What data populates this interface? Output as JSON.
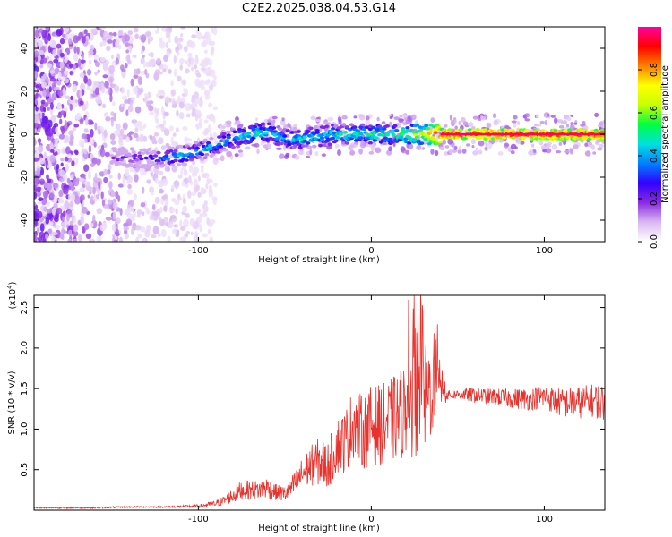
{
  "title": "C2E2.2025.038.04.53.G14",
  "colorbar": {
    "label": "Normalized spectral amplitude",
    "ticks": [
      "0.0",
      "0.2",
      "0.4",
      "0.6",
      "0.8"
    ],
    "tick_values": [
      0.0,
      0.2,
      0.4,
      0.6,
      0.8
    ],
    "range": [
      0,
      1
    ],
    "colormap": [
      "#ffffff",
      "#d9b8f2",
      "#8a2be2",
      "#3200ff",
      "#0080ff",
      "#00e0e0",
      "#00ff40",
      "#c8ff00",
      "#ffff00",
      "#ff8000",
      "#ff0000",
      "#ff00a0"
    ]
  },
  "chart_data": [
    {
      "type": "heatmap",
      "xlabel": "Height of straight line (km)",
      "ylabel": "Frequency (Hz)",
      "xlim": [
        -195,
        135
      ],
      "ylim": [
        -50,
        50
      ],
      "x_ticks": [
        -100,
        0,
        100
      ],
      "x_tick_labels": [
        "-100",
        "0",
        "100"
      ],
      "y_ticks": [
        -40,
        -20,
        0,
        20,
        40
      ],
      "y_tick_labels": [
        "-40",
        "-20",
        "0",
        "20",
        "40"
      ],
      "ridge": {
        "description_values": "center frequency (Hz) of the bright signal trace vs height (km)",
        "x": [
          -150,
          -140,
          -130,
          -120,
          -110,
          -100,
          -90,
          -80,
          -70,
          -60,
          -50,
          -40,
          -30,
          -20,
          -10,
          0,
          10,
          20,
          30,
          40,
          60,
          80,
          100,
          120,
          135
        ],
        "y": [
          -11,
          -11,
          -11,
          -11,
          -10,
          -8,
          -5,
          -2,
          0,
          1,
          -2,
          -2,
          -1,
          0,
          0,
          0,
          0,
          0,
          0,
          0,
          0,
          0,
          0,
          0,
          0
        ],
        "amplitude": [
          0.25,
          0.3,
          0.35,
          0.45,
          0.5,
          0.5,
          0.5,
          0.5,
          0.55,
          0.55,
          0.5,
          0.55,
          0.55,
          0.55,
          0.55,
          0.6,
          0.6,
          0.65,
          0.75,
          1.0,
          1.0,
          1.0,
          1.0,
          1.0,
          1.0
        ]
      }
    },
    {
      "type": "line",
      "xlabel": "Height of straight line (km)",
      "ylabel": "SNR (10 * v/v)",
      "y_multiplier": "(x10^4)",
      "y_multiplier_base": "(x10",
      "y_multiplier_exp": "4",
      "y_multiplier_close": ")",
      "xlim": [
        -195,
        135
      ],
      "ylim": [
        0,
        2.65
      ],
      "x_ticks": [
        -100,
        0,
        100
      ],
      "x_tick_labels": [
        "-100",
        "0",
        "100"
      ],
      "y_ticks": [
        0.5,
        1.0,
        1.5,
        2.0,
        2.5
      ],
      "y_tick_labels": [
        "0.5",
        "1.0",
        "1.5",
        "2.0",
        "2.5"
      ],
      "color": "#e8322d",
      "series": [
        {
          "x": [
            -195,
            -180,
            -160,
            -140,
            -120,
            -100,
            -90,
            -85,
            -80,
            -75,
            -70,
            -65,
            -60,
            -55,
            -50,
            -45,
            -40,
            -35,
            -30,
            -25,
            -20,
            -15,
            -10,
            -5,
            0,
            5,
            10,
            15,
            20,
            25,
            30,
            35,
            40,
            45,
            50,
            60,
            70,
            80,
            90,
            100,
            110,
            120,
            130,
            135
          ],
          "values": [
            0.03,
            0.03,
            0.03,
            0.04,
            0.04,
            0.05,
            0.08,
            0.12,
            0.18,
            0.25,
            0.25,
            0.25,
            0.28,
            0.22,
            0.2,
            0.3,
            0.45,
            0.55,
            0.6,
            0.55,
            0.8,
            0.85,
            1.1,
            0.95,
            1.05,
            1.05,
            1.1,
            1.15,
            1.25,
            1.3,
            1.35,
            1.5,
            1.55,
            1.42,
            1.43,
            1.42,
            1.4,
            1.38,
            1.37,
            1.4,
            1.32,
            1.33,
            1.35,
            1.32
          ],
          "noise": [
            0.01,
            0.01,
            0.01,
            0.01,
            0.01,
            0.02,
            0.04,
            0.06,
            0.1,
            0.12,
            0.12,
            0.12,
            0.14,
            0.1,
            0.1,
            0.15,
            0.2,
            0.25,
            0.3,
            0.3,
            0.35,
            0.4,
            0.45,
            0.45,
            0.5,
            0.5,
            0.5,
            0.55,
            0.6,
            0.65,
            0.7,
            0.6,
            0.3,
            0.06,
            0.06,
            0.1,
            0.1,
            0.12,
            0.14,
            0.15,
            0.18,
            0.2,
            0.22,
            0.25
          ]
        }
      ]
    }
  ]
}
